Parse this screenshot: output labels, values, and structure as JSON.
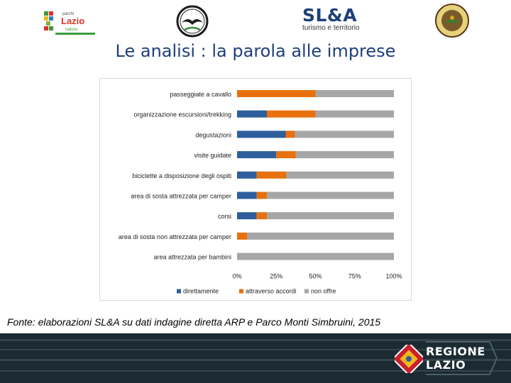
{
  "header": {
    "lazio_logo_text": [
      "Lazio",
      "parchi",
      "natura"
    ],
    "slta_title": "SL&A",
    "slta_subtitle": "turismo e territorio"
  },
  "page_title": "Le analisi : la parola alle imprese",
  "caption": "Fonte: elaborazioni SL&A su dati indagine diretta ARP e Parco Monti Simbruini, 2015",
  "footer": {
    "region_line1": "REGIONE",
    "region_line2": "LAZIO"
  },
  "colors": {
    "direttamente": "#2e5f9c",
    "attraverso": "#e8710d",
    "non_offre": "#a6a6a6",
    "title": "#1f3f7a",
    "footer_bg": "#1c2a32"
  },
  "chart_data": {
    "type": "bar",
    "orientation": "horizontal",
    "stacked": "percent",
    "title": "",
    "xlabel": "",
    "ylabel": "",
    "categories": [
      "passeggiate a cavallo",
      "organizzazione escursioni/trekking",
      "degustazioni",
      "visite guidate",
      "biciclette a disposizione degli ospiti",
      "area di sosta attrezzata per camper",
      "corsi",
      "area di sosta non attrezzata per camper",
      "area attrezzata per bambini"
    ],
    "series": [
      {
        "name": "direttamente",
        "values": [
          0,
          19,
          31,
          25,
          12.5,
          12.5,
          12.5,
          0,
          0
        ]
      },
      {
        "name": "attraverso accordi",
        "values": [
          50,
          31,
          6,
          12.5,
          19,
          6.5,
          6.5,
          6.5,
          0
        ]
      },
      {
        "name": "non offre",
        "values": [
          50,
          50,
          63,
          62.5,
          68.5,
          81,
          81,
          93.5,
          100
        ]
      }
    ],
    "xticks": [
      "0%",
      "25%",
      "50%",
      "75%",
      "100%"
    ],
    "xlim": [
      0,
      100
    ],
    "grid": false,
    "legend_position": "bottom"
  }
}
